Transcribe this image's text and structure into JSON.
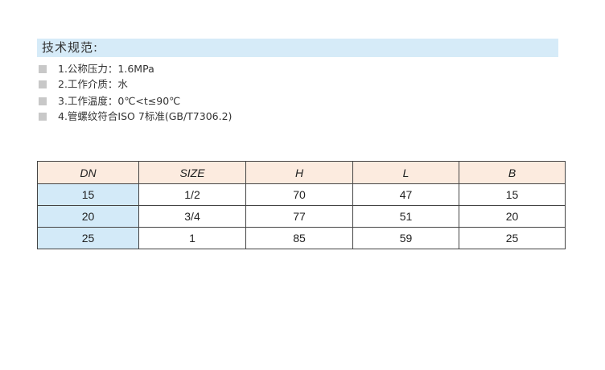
{
  "title": "技术规范:",
  "specs": [
    "1.公称压力：1.6MPa",
    "2.工作介质：水",
    "3.工作温度：0℃<t≤90℃",
    "4.管螺纹符合ISO 7标准(GB/T7306.2)"
  ],
  "table": {
    "headers": [
      "DN",
      "SIZE",
      "H",
      "L",
      "B"
    ],
    "rows": [
      [
        "15",
        "1/2",
        "70",
        "47",
        "15"
      ],
      [
        "20",
        "3/4",
        "77",
        "51",
        "20"
      ],
      [
        "25",
        "1",
        "85",
        "59",
        "25"
      ]
    ]
  }
}
